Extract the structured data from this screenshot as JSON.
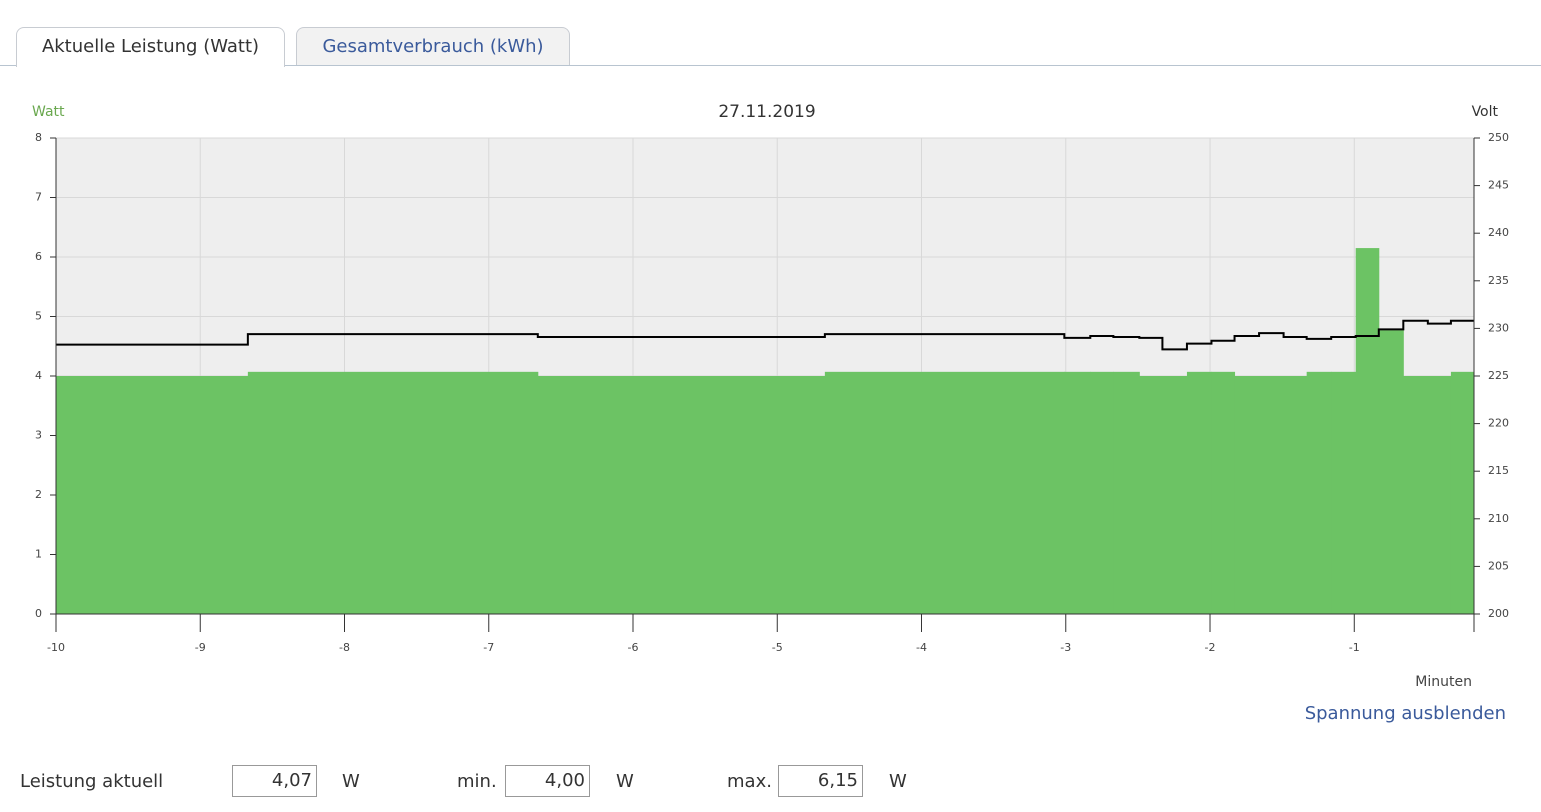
{
  "tabs": [
    "Aktuelle Leistung (Watt)",
    "Gesamtverbrauch (kWh)"
  ],
  "chart_data": {
    "type": "step",
    "title": "27.11.2019",
    "ylabel": "Watt",
    "y2label": "Volt",
    "xlabel": "Minuten",
    "x": [
      -10,
      -8.67,
      -6.66,
      -4.67,
      -3.01,
      -2.83,
      -2.67,
      -2.49,
      -2.33,
      -2.16,
      -1.99,
      -1.83,
      -1.66,
      -1.49,
      -1.33,
      -1.16,
      -0.99,
      -0.83,
      -0.66,
      -0.49,
      -0.33
    ],
    "series": [
      {
        "color": "#6cc364",
        "fill": true,
        "values": [
          4.0,
          4.07,
          4.0,
          4.07,
          4.07,
          4.07,
          4.07,
          4.0,
          4.0,
          4.07,
          4.07,
          4.0,
          4.0,
          4.0,
          4.07,
          4.07,
          6.15,
          4.77,
          4.0,
          4.0,
          4.07
        ]
      },
      {
        "color": "#000000",
        "axis": "y2",
        "values": [
          228.3,
          229.4,
          229.1,
          229.4,
          229.0,
          229.2,
          229.1,
          229.0,
          227.8,
          228.4,
          228.7,
          229.2,
          229.5,
          229.1,
          228.9,
          229.1,
          229.2,
          229.9,
          230.8,
          230.5,
          230.8
        ]
      }
    ],
    "xlim": [
      -10,
      -0.17
    ],
    "xticks": [
      -10,
      -9,
      -8,
      -7,
      -6,
      -5,
      -4,
      -3,
      -2,
      -1
    ],
    "ylim": [
      0,
      8
    ],
    "yticks": [
      0,
      1,
      2,
      3,
      4,
      5,
      6,
      7,
      8
    ],
    "y2lim": [
      200,
      250
    ],
    "y2ticks": [
      200,
      205,
      210,
      215,
      220,
      225,
      230,
      235,
      240,
      245,
      250
    ],
    "grid": true,
    "ylabel_color": "#6aa84f"
  },
  "toggle": "Spannung ausblenden",
  "stats": [
    {
      "label": "Leistung aktuell",
      "value": "4,07",
      "unit": "W"
    },
    {
      "label": "min.",
      "value": "4,00",
      "unit": "W"
    },
    {
      "label": "max.",
      "value": "6,15",
      "unit": "W"
    }
  ]
}
